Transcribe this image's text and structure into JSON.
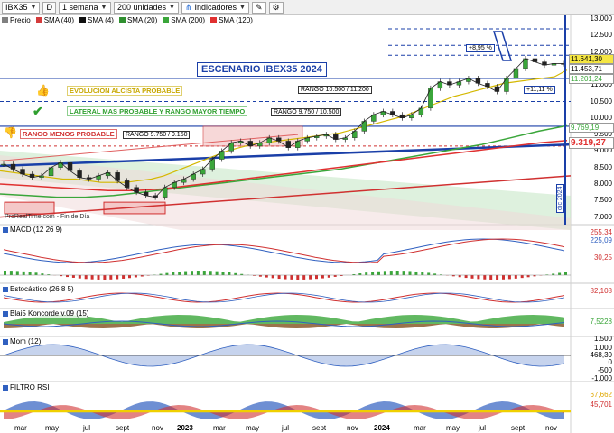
{
  "toolbar": {
    "symbol": "IBX35",
    "d_button": "D",
    "timeframe": "1 semana",
    "units": "200 unidades",
    "indicators": "Indicadores"
  },
  "legend": [
    {
      "label": "Precio",
      "color": "#808080"
    },
    {
      "label": "SMA (40)",
      "color": "#d43b3b"
    },
    {
      "label": "SMA (4)",
      "color": "#101010"
    },
    {
      "label": "SMA (20)",
      "color": "#2f8f2f"
    },
    {
      "label": "SMA (200)",
      "color": "#3aa63a"
    },
    {
      "label": "SMA (120)",
      "color": "#e03030"
    }
  ],
  "annotations": {
    "title": "ESCENARIO IBEX35 2024",
    "bull": "EVOLUCION ALCISTA PROBABLE",
    "lateral": "LATERAL MAS PROBABLE Y RANGO MAYOR TIEMPO",
    "bear": "RANGO MENOS PROBABLE",
    "range1": "RANGO 10.500 / 11.200",
    "range2": "RANGO 9.750 / 10.500",
    "range3": "RANGO 9.750 / 9.150",
    "pct1": "+8,95 %",
    "pct2": "+11,11 %",
    "source": "ProRealTime.com - Fin de Día",
    "vertical_date": "dic 2024"
  },
  "price_axis": [
    "13.000",
    "12.500",
    "12.000",
    "11.500",
    "11.000",
    "10.500",
    "10.000",
    "9.500",
    "9.000",
    "8.500",
    "8.000",
    "7.500",
    "7.000"
  ],
  "price_tags": [
    {
      "value": "11.641,30",
      "color": "#f5e642"
    },
    {
      "value": "11.453,71",
      "color": "#ffffff"
    },
    {
      "value": "11.201,24",
      "color": "#3aa63a"
    },
    {
      "value": "9.769,19",
      "color": "#3aa63a"
    },
    {
      "value": "9.319,27",
      "color": "#e03030"
    }
  ],
  "panels": {
    "macd": {
      "label": "MACD (12 26 9)",
      "values": [
        "255,34",
        "225,09",
        "30,25"
      ]
    },
    "stoch": {
      "label": "Estocástico (26 8 5)",
      "values": [
        "82,108"
      ]
    },
    "blai": {
      "label": "Blai5 Koncorde v.09 (15)",
      "values": [
        "7,5228"
      ]
    },
    "mom": {
      "label": "Mom (12)",
      "values": [
        "1.500",
        "1.000",
        "468,30",
        "0",
        "-500",
        "-1.000"
      ]
    },
    "rsi": {
      "label": "FILTRO RSI",
      "values": [
        "67,662",
        "45,701"
      ]
    }
  },
  "months": [
    {
      "label": "mar",
      "year": false
    },
    {
      "label": "may",
      "year": false
    },
    {
      "label": "jul",
      "year": false
    },
    {
      "label": "sept",
      "year": false
    },
    {
      "label": "nov",
      "year": false
    },
    {
      "label": "2023",
      "year": true
    },
    {
      "label": "mar",
      "year": false
    },
    {
      "label": "may",
      "year": false
    },
    {
      "label": "jul",
      "year": false
    },
    {
      "label": "sept",
      "year": false
    },
    {
      "label": "nov",
      "year": false
    },
    {
      "label": "2024",
      "year": true
    },
    {
      "label": "mar",
      "year": false
    },
    {
      "label": "may",
      "year": false
    },
    {
      "label": "jul",
      "year": false
    },
    {
      "label": "sept",
      "year": false
    },
    {
      "label": "nov",
      "year": false
    }
  ],
  "chart_data": {
    "type": "line",
    "ylim": [
      6800,
      13200
    ],
    "price": [
      8600,
      8450,
      8300,
      8200,
      8250,
      8500,
      8650,
      8400,
      8200,
      8150,
      8250,
      8350,
      8100,
      7900,
      7750,
      7650,
      7600,
      7900,
      8050,
      8150,
      8300,
      8450,
      8750,
      9000,
      9250,
      9300,
      9150,
      9250,
      9400,
      9300,
      9100,
      9300,
      9400,
      9450,
      9500,
      9350,
      9400,
      9600,
      9900,
      10100,
      10200,
      10100,
      10000,
      10100,
      10300,
      10900,
      11100,
      11000,
      11100,
      11200,
      11050,
      10950,
      10800,
      11200,
      11500,
      11800,
      11700,
      11600,
      11650,
      11641
    ],
    "sma40": [
      8400,
      8350,
      8300,
      8250,
      8200,
      8150,
      8150,
      8100,
      8050,
      8050,
      8050,
      8100,
      8150,
      8250,
      8400,
      8550,
      8700,
      8850,
      9000,
      9100,
      9200,
      9250,
      9300,
      9350,
      9400,
      9450,
      9500,
      9550,
      9650,
      9750,
      9850,
      9950,
      10050,
      10200,
      10350,
      10500,
      10650,
      10750,
      10850,
      10950,
      11050,
      11100,
      11150,
      11200,
      11250,
      11453
    ],
    "sma120": [
      8000,
      7950,
      7900,
      7850,
      7800,
      7800,
      7850,
      7950,
      8050,
      8150,
      8250,
      8350,
      8450,
      8550,
      8650,
      8750,
      8850,
      8950,
      9050,
      9150,
      9250,
      9319
    ],
    "sma200": [
      7700,
      7650,
      7600,
      7600,
      7650,
      7750,
      7850,
      7950,
      8050,
      8150,
      8250,
      8350,
      8450,
      8600,
      8750,
      8900,
      9050,
      9200,
      9400,
      9600,
      9769
    ]
  }
}
